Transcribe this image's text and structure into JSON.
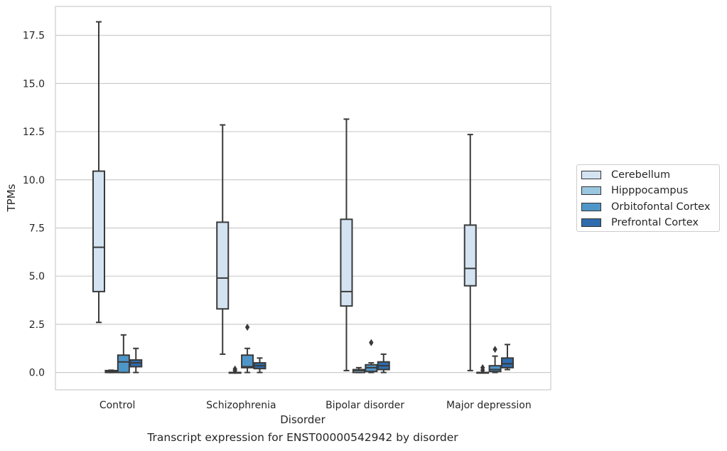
{
  "chart_data": {
    "type": "box",
    "caption": "Transcript expression for ENST00000542942 by disorder",
    "xlabel": "Disorder",
    "ylabel": "TPMs",
    "ylim": [
      -0.9,
      19.0
    ],
    "yticks": [
      0.0,
      2.5,
      5.0,
      7.5,
      10.0,
      12.5,
      15.0,
      17.5
    ],
    "ytick_labels": [
      "0.0",
      "2.5",
      "5.0",
      "7.5",
      "10.0",
      "12.5",
      "15.0",
      "17.5"
    ],
    "grid": "horizontal",
    "legend_position": "outside-right",
    "categories": [
      "Control",
      "Schizophrenia",
      "Bipolar disorder",
      "Major depression"
    ],
    "series": [
      {
        "name": "Cerebellum",
        "color": "#d3e3f2",
        "boxes": [
          {
            "whislo": 2.6,
            "q1": 4.2,
            "med": 6.5,
            "q3": 10.45,
            "whishi": 18.2,
            "fliers": []
          },
          {
            "whislo": 0.95,
            "q1": 3.3,
            "med": 4.9,
            "q3": 7.8,
            "whishi": 12.85,
            "fliers": []
          },
          {
            "whislo": 0.1,
            "q1": 3.45,
            "med": 4.2,
            "q3": 7.95,
            "whishi": 13.15,
            "fliers": []
          },
          {
            "whislo": 0.1,
            "q1": 4.5,
            "med": 5.4,
            "q3": 7.65,
            "whishi": 12.35,
            "fliers": []
          }
        ]
      },
      {
        "name": "Hipppocampus",
        "color": "#9ac7e0",
        "boxes": [
          {
            "whislo": 0.0,
            "q1": 0.0,
            "med": 0.05,
            "q3": 0.1,
            "whishi": 0.12,
            "fliers": []
          },
          {
            "whislo": 0.0,
            "q1": 0.0,
            "med": 0.0,
            "q3": 0.0,
            "whishi": 0.0,
            "fliers": [
              0.1,
              0.18
            ]
          },
          {
            "whislo": 0.0,
            "q1": 0.0,
            "med": 0.1,
            "q3": 0.15,
            "whishi": 0.25,
            "fliers": []
          },
          {
            "whislo": 0.0,
            "q1": 0.0,
            "med": 0.0,
            "q3": 0.0,
            "whishi": 0.0,
            "fliers": [
              0.12,
              0.25
            ]
          }
        ]
      },
      {
        "name": "Orbitofontal Cortex",
        "color": "#4f96c8",
        "boxes": [
          {
            "whislo": 0.0,
            "q1": 0.0,
            "med": 0.55,
            "q3": 0.9,
            "whishi": 1.95,
            "fliers": []
          },
          {
            "whislo": 0.0,
            "q1": 0.25,
            "med": 0.3,
            "q3": 0.9,
            "whishi": 1.25,
            "fliers": [
              2.35
            ]
          },
          {
            "whislo": 0.0,
            "q1": 0.05,
            "med": 0.25,
            "q3": 0.4,
            "whishi": 0.5,
            "fliers": [
              1.55
            ]
          },
          {
            "whislo": 0.0,
            "q1": 0.05,
            "med": 0.15,
            "q3": 0.35,
            "whishi": 0.85,
            "fliers": [
              1.2
            ]
          }
        ]
      },
      {
        "name": "Prefrontal Cortex",
        "color": "#2e6cad",
        "boxes": [
          {
            "whislo": 0.0,
            "q1": 0.3,
            "med": 0.5,
            "q3": 0.65,
            "whishi": 1.25,
            "fliers": []
          },
          {
            "whislo": 0.0,
            "q1": 0.2,
            "med": 0.35,
            "q3": 0.5,
            "whishi": 0.75,
            "fliers": []
          },
          {
            "whislo": 0.0,
            "q1": 0.15,
            "med": 0.35,
            "q3": 0.55,
            "whishi": 0.95,
            "fliers": []
          },
          {
            "whislo": 0.15,
            "q1": 0.25,
            "med": 0.45,
            "q3": 0.75,
            "whishi": 1.45,
            "fliers": []
          }
        ]
      }
    ]
  }
}
